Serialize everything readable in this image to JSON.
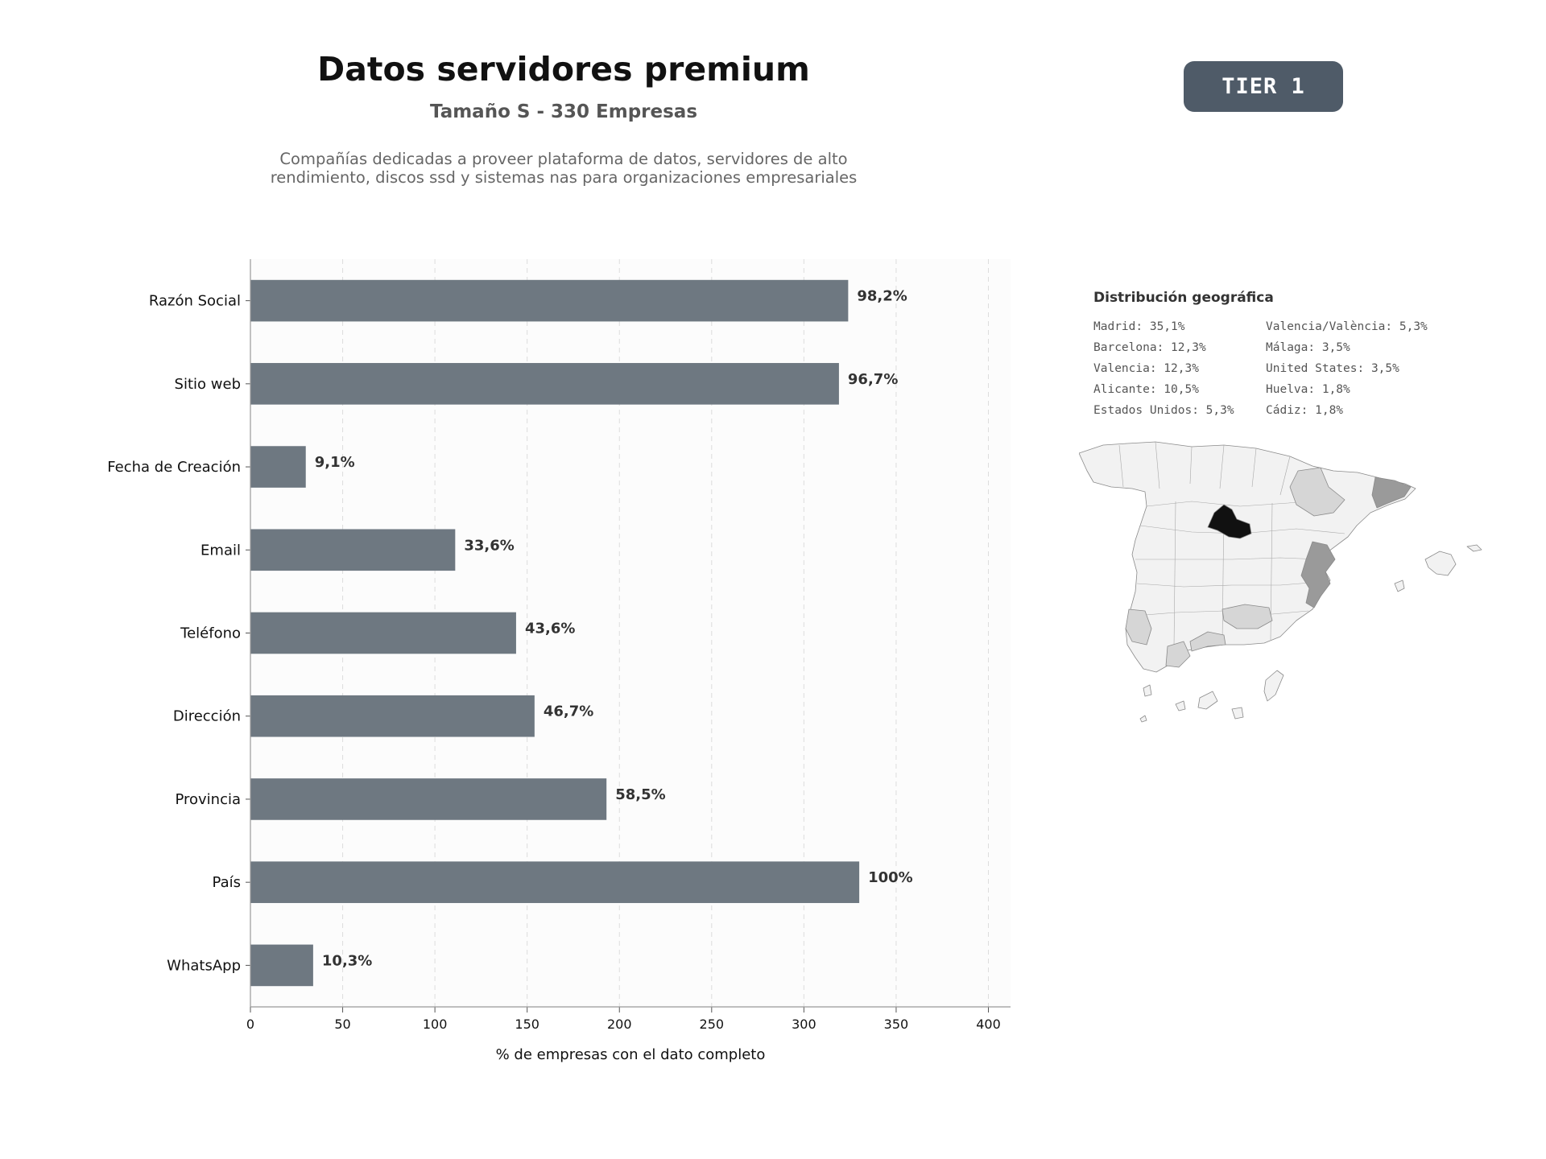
{
  "header": {
    "title": "Datos servidores premium",
    "subtitle": "Tamaño S - 330 Empresas",
    "description": "Compañías dedicadas a proveer plataforma de datos, servidores de alto rendimiento, discos ssd y sistemas nas para organizaciones empresariales",
    "badge": "TIER 1"
  },
  "chart_data": {
    "type": "bar",
    "orientation": "horizontal",
    "categories": [
      "Razón Social",
      "Sitio web",
      "Fecha de Creación",
      "Email",
      "Teléfono",
      "Dirección",
      "Provincia",
      "País",
      "WhatsApp"
    ],
    "values": [
      324,
      319,
      30,
      111,
      144,
      154,
      193,
      330,
      34
    ],
    "data_labels": [
      "98,2%",
      "96,7%",
      "9,1%",
      "33,6%",
      "43,6%",
      "46,7%",
      "58,5%",
      "100%",
      "10,3%"
    ],
    "xlabel": "% de empresas con el dato completo",
    "xlim": [
      0,
      412
    ],
    "xticks": [
      0,
      50,
      100,
      150,
      200,
      250,
      300,
      350,
      400
    ],
    "grid": "vertical dashed",
    "bar_color": "#6e7881"
  },
  "geo": {
    "title": "Distribución geográfica",
    "items": [
      "Madrid: 35,1%",
      "Valencia/València: 5,3%",
      "Barcelona: 12,3%",
      "Málaga: 3,5%",
      "Valencia: 12,3%",
      "United States: 3,5%",
      "Alicante: 10,5%",
      "Huelva: 1,8%",
      "Estados Unidos: 5,3%",
      "Cádiz: 1,8%"
    ]
  },
  "colors": {
    "badge": "#4f5b68",
    "bar": "#6e7881",
    "map_highlight": "#111111",
    "map_high": "#9a9a9a",
    "map_low": "#d6d6d6",
    "map_base": "#f2f2f2"
  }
}
